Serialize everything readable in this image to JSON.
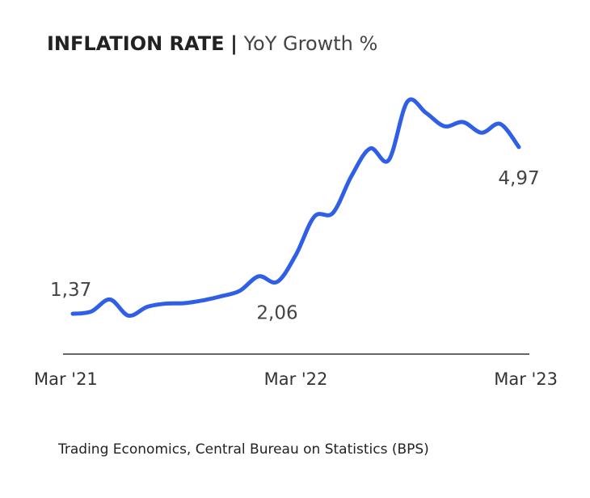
{
  "title": {
    "main": "INFLATION RATE",
    "separator": "|",
    "sub": "YoY Growth %"
  },
  "source": "Trading Economics, Central Bureau on Statistics (BPS)",
  "colors": {
    "line": "#2f5fe6",
    "axis": "#333333",
    "text": "#333333"
  },
  "chart_data": {
    "type": "line",
    "title": "INFLATION RATE | YoY Growth %",
    "xlabel": "",
    "ylabel": "",
    "x": [
      "Mar '21",
      "Apr '21",
      "May '21",
      "Jun '21",
      "Jul '21",
      "Aug '21",
      "Sep '21",
      "Oct '21",
      "Nov '21",
      "Dec '21",
      "Jan '22",
      "Feb '22",
      "Mar '22",
      "Apr '22",
      "May '22",
      "Jun '22",
      "Jul '22",
      "Aug '22",
      "Sep '22",
      "Oct '22",
      "Nov '22",
      "Dec '22",
      "Jan '23",
      "Feb '23",
      "Mar '23"
    ],
    "series": [
      {
        "name": "",
        "values": [
          1.37,
          1.42,
          1.68,
          1.33,
          1.52,
          1.59,
          1.6,
          1.66,
          1.75,
          1.87,
          2.18,
          2.06,
          2.64,
          3.47,
          3.55,
          4.35,
          4.94,
          4.69,
          5.95,
          5.71,
          5.42,
          5.51,
          5.28,
          5.47,
          4.97
        ]
      }
    ],
    "tick_labels": [
      {
        "index": 0,
        "label": "Mar '21"
      },
      {
        "index": 12,
        "label": "Mar '22"
      },
      {
        "index": 24,
        "label": "Mar '23"
      }
    ],
    "data_labels": [
      {
        "index": 0,
        "label": "1,37",
        "placement": "above"
      },
      {
        "index": 11,
        "label": "2,06",
        "placement": "below"
      },
      {
        "index": 24,
        "label": "4,97",
        "placement": "below"
      }
    ],
    "ylim": [
      0.5,
      6.4
    ],
    "grid": false,
    "legend": "none"
  }
}
